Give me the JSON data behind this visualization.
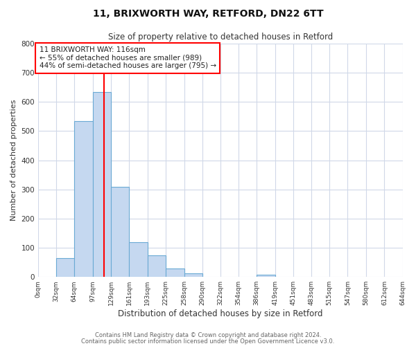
{
  "title": "11, BRIXWORTH WAY, RETFORD, DN22 6TT",
  "subtitle": "Size of property relative to detached houses in Retford",
  "xlabel": "Distribution of detached houses by size in Retford",
  "ylabel": "Number of detached properties",
  "bin_edges": [
    0,
    32,
    64,
    97,
    129,
    161,
    193,
    225,
    258,
    290,
    322,
    354,
    386,
    419,
    451,
    483,
    515,
    547,
    580,
    612,
    644
  ],
  "bin_labels": [
    "0sqm",
    "32sqm",
    "64sqm",
    "97sqm",
    "129sqm",
    "161sqm",
    "193sqm",
    "225sqm",
    "258sqm",
    "290sqm",
    "322sqm",
    "354sqm",
    "386sqm",
    "419sqm",
    "451sqm",
    "483sqm",
    "515sqm",
    "547sqm",
    "580sqm",
    "612sqm",
    "644sqm"
  ],
  "bar_heights": [
    0,
    65,
    535,
    635,
    310,
    120,
    75,
    30,
    12,
    0,
    0,
    0,
    8,
    0,
    0,
    0,
    0,
    0,
    0,
    0
  ],
  "bar_color": "#c5d8f0",
  "bar_edge_color": "#6aaad4",
  "property_size": 116,
  "vline_color": "red",
  "annotation_line1": "11 BRIXWORTH WAY: 116sqm",
  "annotation_line2": "← 55% of detached houses are smaller (989)",
  "annotation_line3": "44% of semi-detached houses are larger (795) →",
  "annotation_box_color": "white",
  "annotation_box_edge": "red",
  "ylim": [
    0,
    800
  ],
  "yticks": [
    0,
    100,
    200,
    300,
    400,
    500,
    600,
    700,
    800
  ],
  "footer_line1": "Contains HM Land Registry data © Crown copyright and database right 2024.",
  "footer_line2": "Contains public sector information licensed under the Open Government Licence v3.0.",
  "background_color": "#ffffff",
  "plot_bg_color": "#ffffff",
  "grid_color": "#d0d8e8"
}
